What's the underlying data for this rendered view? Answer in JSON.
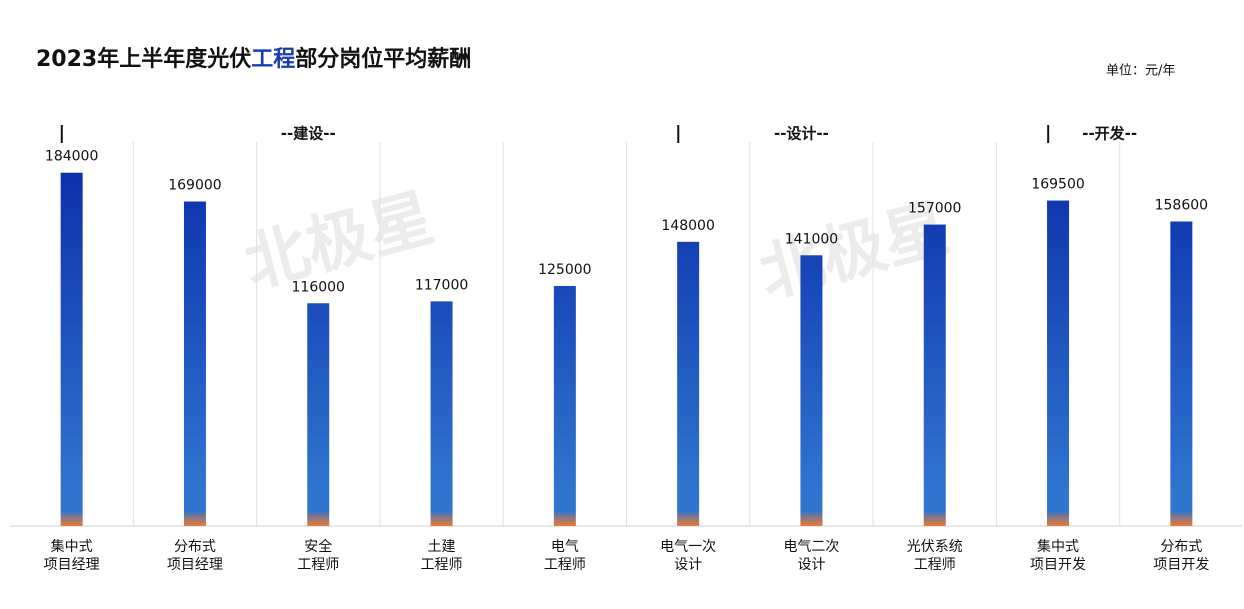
{
  "chart_data": {
    "type": "bar",
    "title": [
      "2023年上半年度光伏",
      "工程",
      "部分岗位平均薪酬"
    ],
    "unit": "单位：元/年",
    "watermark": "北极星",
    "groups": [
      {
        "name": "--建设--",
        "span": 5
      },
      {
        "name": "--设计--",
        "span": 3
      },
      {
        "name": "--开发--",
        "span": 2
      }
    ],
    "categories": [
      [
        "集中式",
        "项目经理"
      ],
      [
        "分布式",
        "项目经理"
      ],
      [
        "安全",
        "工程师"
      ],
      [
        "土建",
        "工程师"
      ],
      [
        "电气",
        "工程师"
      ],
      [
        "电气一次",
        "设计"
      ],
      [
        "电气二次",
        "设计"
      ],
      [
        "光伏系统",
        "工程师"
      ],
      [
        "集中式",
        "项目开发"
      ],
      [
        "分布式",
        "项目开发"
      ]
    ],
    "values": [
      184000,
      169000,
      116000,
      117000,
      125000,
      148000,
      141000,
      157000,
      169500,
      158600
    ],
    "colors": [
      "#0a2aa8",
      "#2f74cf",
      "#ee7a30"
    ],
    "title_highlight_color": "#1a3cb0",
    "ylim": [
      0,
      200000
    ]
  }
}
